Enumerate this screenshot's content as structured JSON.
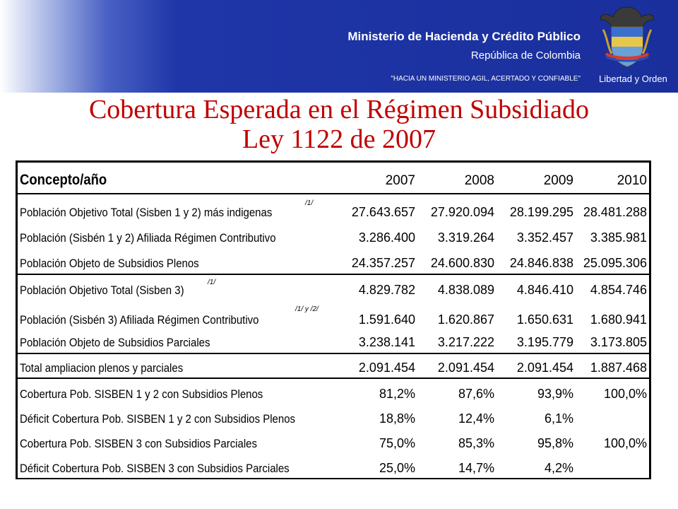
{
  "header": {
    "ministry": "Ministerio de Hacienda y Crédito Público",
    "republic": "República de Colombia",
    "slogan": "\"HACIA UN MINISTERIO AGIL, ACERTADO Y CONFIABLE\"",
    "motto": "Libertad y Orden"
  },
  "title": {
    "line1": "Cobertura Esperada en el Régimen Subsidiado",
    "line2": "Ley 1122 de 2007"
  },
  "table": {
    "concept_header": "Concepto/año",
    "years": [
      "2007",
      "2008",
      "2009",
      "2010"
    ],
    "rows": [
      {
        "label": "Población Objetivo Total (Sisben 1 y 2) más indigenas",
        "note": "/1/",
        "values": [
          "27.643.657",
          "27.920.094",
          "28.199.295",
          "28.481.288"
        ]
      },
      {
        "label": "Población (Sisbén 1 y 2)  Afiliada Régimen Contributivo",
        "note": "",
        "values": [
          "3.286.400",
          "3.319.264",
          "3.352.457",
          "3.385.981"
        ]
      },
      {
        "label": "Población Objeto de Subsidios Plenos",
        "note": "",
        "values": [
          "24.357.257",
          "24.600.830",
          "24.846.838",
          "25.095.306"
        ]
      },
      {
        "label": "Población Objetivo Total (Sisben 3)",
        "note": "/1/",
        "values": [
          "4.829.782",
          "4.838.089",
          "4.846.410",
          "4.854.746"
        ]
      },
      {
        "label": "Población (Sisbén 3) Afiliada Régimen Contributivo",
        "note": "/1/ y /2/",
        "values": [
          "1.591.640",
          "1.620.867",
          "1.650.631",
          "1.680.941"
        ]
      },
      {
        "label": "Población Objeto de Subsidios Parciales",
        "note": "",
        "values": [
          "3.238.141",
          "3.217.222",
          "3.195.779",
          "3.173.805"
        ]
      },
      {
        "label": "Total ampliacion plenos y parciales",
        "note": "",
        "values": [
          "2.091.454",
          "2.091.454",
          "2.091.454",
          "1.887.468"
        ]
      },
      {
        "label": "Cobertura Pob. SISBEN 1 y 2 con Subsidios Plenos",
        "note": "",
        "values": [
          "81,2%",
          "87,6%",
          "93,9%",
          "100,0%"
        ]
      },
      {
        "label": "Déficit Cobertura Pob. SISBEN 1 y 2 con Subsidios Plenos",
        "note": "",
        "values": [
          "18,8%",
          "12,4%",
          "6,1%",
          ""
        ]
      },
      {
        "label": "Cobertura Pob. SISBEN 3 con Subsidios Parciales",
        "note": "",
        "values": [
          "75,0%",
          "85,3%",
          "95,8%",
          "100,0%"
        ]
      },
      {
        "label": "Déficit Cobertura Pob. SISBEN 3 con Subsidios Parciales",
        "note": "",
        "values": [
          "25,0%",
          "14,7%",
          "4,2%",
          ""
        ]
      }
    ]
  },
  "colors": {
    "title": "#c00000",
    "banner": "#1a2f9c"
  }
}
